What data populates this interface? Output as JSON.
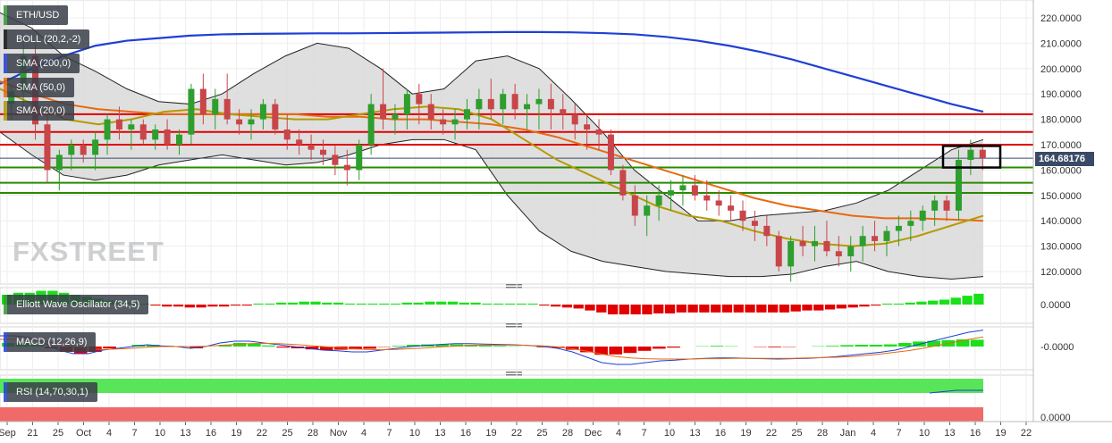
{
  "symbol": "ETH/USD",
  "indicators": {
    "boll": "BOLL (20,2,-2)",
    "sma200": "SMA (200,0)",
    "sma50": "SMA (50,0)",
    "sma20": "SMA (20,0)",
    "ewo": "Elliott Wave Oscillator (34,5)",
    "macd": "MACD (12,26,9)",
    "rsi": "RSI (14,70,30,1)"
  },
  "watermark": "FXSTREET",
  "current_price": "164.68176",
  "colors": {
    "up": "#2e9e2e",
    "down": "#c8454a",
    "sma200": "#1f3fd6",
    "sma50": "#e86a10",
    "sma20": "#b59a00",
    "resistance": "#e00000",
    "support": "#2a8a00",
    "boll_fill": "#d9d9d9",
    "label_bg": "#3a3f4a"
  },
  "chart_data": [
    {
      "type": "candlestick",
      "title": "ETH/USD",
      "y_axis": {
        "ticks": [
          "120.0000",
          "130.0000",
          "140.0000",
          "150.0000",
          "160.0000",
          "170.0000",
          "180.0000",
          "190.0000",
          "200.0000",
          "210.0000",
          "220.0000"
        ],
        "range": [
          115,
          225
        ]
      },
      "x_axis": {
        "ticks": [
          "Sep",
          "21",
          "25",
          "Oct",
          "4",
          "7",
          "10",
          "13",
          "16",
          "19",
          "22",
          "25",
          "28",
          "Nov",
          "4",
          "7",
          "10",
          "13",
          "16",
          "19",
          "22",
          "25",
          "28",
          "Dec",
          "4",
          "7",
          "10",
          "13",
          "16",
          "19",
          "22",
          "25",
          "28",
          "Jan",
          "4",
          "7",
          "10",
          "13",
          "16",
          "19",
          "22"
        ]
      },
      "candles": [
        [
          186,
          194,
          180,
          191
        ],
        [
          191,
          212,
          185,
          205
        ],
        [
          205,
          210,
          172,
          178
        ],
        [
          178,
          182,
          155,
          160
        ],
        [
          160,
          168,
          152,
          166
        ],
        [
          166,
          172,
          160,
          170
        ],
        [
          170,
          172,
          163,
          166
        ],
        [
          166,
          175,
          160,
          172
        ],
        [
          172,
          182,
          166,
          180
        ],
        [
          180,
          185,
          172,
          176
        ],
        [
          176,
          180,
          168,
          178
        ],
        [
          178,
          180,
          170,
          172
        ],
        [
          172,
          178,
          168,
          176
        ],
        [
          176,
          180,
          168,
          170
        ],
        [
          170,
          176,
          166,
          174
        ],
        [
          174,
          194,
          170,
          192
        ],
        [
          192,
          198,
          178,
          182
        ],
        [
          182,
          192,
          176,
          188
        ],
        [
          188,
          198,
          178,
          180
        ],
        [
          180,
          184,
          174,
          178
        ],
        [
          178,
          184,
          172,
          180
        ],
        [
          180,
          188,
          176,
          186
        ],
        [
          186,
          188,
          174,
          176
        ],
        [
          176,
          182,
          168,
          172
        ],
        [
          172,
          176,
          166,
          170
        ],
        [
          170,
          174,
          164,
          168
        ],
        [
          168,
          172,
          162,
          166
        ],
        [
          166,
          170,
          158,
          162
        ],
        [
          162,
          168,
          154,
          160
        ],
        [
          160,
          172,
          156,
          170
        ],
        [
          170,
          190,
          166,
          186
        ],
        [
          186,
          200,
          176,
          180
        ],
        [
          180,
          186,
          174,
          182
        ],
        [
          182,
          192,
          176,
          190
        ],
        [
          190,
          194,
          178,
          186
        ],
        [
          186,
          190,
          176,
          180
        ],
        [
          180,
          184,
          174,
          178
        ],
        [
          178,
          184,
          172,
          180
        ],
        [
          180,
          188,
          176,
          184
        ],
        [
          184,
          192,
          176,
          188
        ],
        [
          188,
          196,
          180,
          184
        ],
        [
          184,
          192,
          178,
          190
        ],
        [
          190,
          194,
          180,
          184
        ],
        [
          184,
          190,
          176,
          186
        ],
        [
          186,
          192,
          176,
          188
        ],
        [
          188,
          194,
          176,
          184
        ],
        [
          184,
          190,
          176,
          182
        ],
        [
          182,
          186,
          172,
          178
        ],
        [
          178,
          182,
          168,
          176
        ],
        [
          176,
          180,
          168,
          174
        ],
        [
          174,
          176,
          158,
          160
        ],
        [
          160,
          162,
          148,
          150
        ],
        [
          150,
          154,
          138,
          142
        ],
        [
          142,
          150,
          134,
          146
        ],
        [
          146,
          154,
          140,
          150
        ],
        [
          150,
          156,
          144,
          152
        ],
        [
          152,
          158,
          146,
          154
        ],
        [
          154,
          158,
          148,
          150
        ],
        [
          150,
          156,
          144,
          148
        ],
        [
          148,
          152,
          142,
          146
        ],
        [
          146,
          150,
          140,
          144
        ],
        [
          144,
          148,
          136,
          140
        ],
        [
          140,
          144,
          132,
          138
        ],
        [
          138,
          142,
          130,
          134
        ],
        [
          134,
          136,
          120,
          122
        ],
        [
          122,
          134,
          116,
          132
        ],
        [
          132,
          138,
          126,
          130
        ],
        [
          130,
          138,
          124,
          132
        ],
        [
          132,
          140,
          126,
          128
        ],
        [
          128,
          134,
          122,
          126
        ],
        [
          126,
          134,
          120,
          130
        ],
        [
          130,
          138,
          124,
          134
        ],
        [
          134,
          140,
          128,
          132
        ],
        [
          132,
          138,
          126,
          136
        ],
        [
          136,
          142,
          130,
          138
        ],
        [
          138,
          144,
          132,
          140
        ],
        [
          140,
          146,
          136,
          144
        ],
        [
          144,
          150,
          138,
          148
        ],
        [
          148,
          150,
          140,
          144
        ],
        [
          144,
          168,
          140,
          164
        ],
        [
          164,
          172,
          158,
          168
        ],
        [
          168,
          170,
          160,
          164.7
        ]
      ],
      "sma200": [
        194,
        200,
        205,
        209,
        211,
        212,
        213,
        213.5,
        213.7,
        213.8,
        213.9,
        213.9,
        214,
        214.1,
        214.2,
        214.3,
        214.4,
        214.4,
        214.3,
        214,
        213.5,
        212.5,
        211,
        209,
        206.5,
        203.5,
        200,
        196.5,
        193,
        189.5,
        186,
        183
      ],
      "sma50": [
        195,
        190,
        186,
        184,
        183,
        182,
        182,
        182,
        182,
        182,
        181,
        181,
        180,
        180,
        179,
        178,
        176,
        173,
        169,
        165,
        161,
        157,
        153,
        149,
        146,
        144,
        142,
        141,
        141,
        140.5,
        140
      ],
      "sma20": [
        192,
        186,
        180,
        178,
        180,
        183,
        184,
        182,
        181,
        180,
        180,
        182,
        184,
        185,
        184,
        180,
        172,
        164,
        158,
        152,
        146,
        142,
        140,
        136,
        133,
        131,
        130,
        131,
        134,
        138,
        142
      ],
      "boll_upper": [
        222,
        216,
        205,
        199,
        192,
        187,
        186,
        190,
        198,
        205,
        210,
        208,
        200,
        190,
        192,
        203,
        205,
        200,
        188,
        175,
        160,
        150,
        140,
        140,
        142,
        143,
        144,
        147,
        152,
        160,
        168,
        172
      ],
      "boll_lower": [
        175,
        166,
        158,
        156,
        158,
        162,
        164,
        166,
        164,
        162,
        163,
        166,
        170,
        172,
        172,
        168,
        150,
        136,
        128,
        124,
        122,
        120,
        119,
        118,
        118,
        119,
        122,
        124,
        120,
        118,
        117,
        118
      ],
      "resistance_levels": [
        182,
        175,
        170
      ],
      "support_levels": [
        161,
        155,
        151
      ],
      "current_price": 164.68176
    },
    {
      "type": "bar",
      "title": "Elliott Wave Oscillator (34,5)",
      "y_axis": {
        "ticks": [
          "0.0000"
        ]
      },
      "values": [
        5,
        6,
        6,
        7,
        7,
        6,
        5,
        4,
        3,
        2,
        1,
        1,
        0.5,
        -0.5,
        -1,
        -1,
        -1.5,
        -1.5,
        -1,
        -1,
        -0.5,
        -0.5,
        0.5,
        0.5,
        1,
        1,
        1.5,
        1.5,
        1,
        1,
        0.5,
        0.5,
        0.5,
        0.5,
        0.5,
        1,
        1,
        1.5,
        1.5,
        1.5,
        1,
        1,
        0.5,
        0.5,
        0.5,
        0.5,
        0.5,
        -0.5,
        -1,
        -1.5,
        -2,
        -3,
        -4,
        -5,
        -5,
        -5,
        -5,
        -4.5,
        -4.5,
        -4,
        -4,
        -4,
        -4,
        -4,
        -4,
        -4,
        -4,
        -4,
        -4,
        -3.5,
        -3,
        -3,
        -2.5,
        -2,
        -1.5,
        -1,
        -0.5,
        0.5,
        0.5,
        1,
        1.5,
        2,
        2.5,
        3.5,
        4.5,
        5.5
      ]
    },
    {
      "type": "line",
      "title": "MACD (12,26,9)",
      "y_axis": {
        "ticks": [
          "-0.0000"
        ]
      },
      "macd": [
        3,
        3,
        2.5,
        1,
        -1,
        -2,
        -2,
        -1,
        -0.5,
        0,
        0.5,
        0.2,
        0,
        -0.5,
        0,
        1,
        1.5,
        1.5,
        1,
        0.5,
        0,
        -0.5,
        -1,
        -1.2,
        -1.5,
        -1.5,
        -1,
        -0.5,
        0,
        0.3,
        0.6,
        0.8,
        0.8,
        0.7,
        0.6,
        0.5,
        0.3,
        0,
        -0.5,
        -1.5,
        -3,
        -4.5,
        -5,
        -5,
        -4.5,
        -4,
        -3.8,
        -3.5,
        -3.3,
        -3.2,
        -3.2,
        -3.3,
        -3.4,
        -3.5,
        -3.4,
        -3.3,
        -3.1,
        -2.8,
        -2.4,
        -2,
        -1.6,
        -1,
        0,
        1,
        2,
        3,
        4,
        4.6
      ],
      "signal": [
        2,
        2,
        2,
        1.5,
        0.8,
        0,
        -0.6,
        -0.8,
        -0.7,
        -0.5,
        -0.2,
        0,
        0,
        0,
        0.1,
        0.3,
        0.6,
        0.8,
        0.9,
        0.8,
        0.6,
        0.3,
        0,
        -0.3,
        -0.6,
        -0.8,
        -0.9,
        -0.8,
        -0.6,
        -0.4,
        -0.1,
        0.1,
        0.3,
        0.4,
        0.4,
        0.4,
        0.3,
        0.2,
        -0.1,
        -0.6,
        -1.3,
        -2.1,
        -2.8,
        -3.2,
        -3.4,
        -3.5,
        -3.5,
        -3.5,
        -3.4,
        -3.4,
        -3.3,
        -3.3,
        -3.3,
        -3.3,
        -3.3,
        -3.2,
        -3.1,
        -3,
        -2.8,
        -2.5,
        -2.1,
        -1.6,
        -1.1,
        -0.4,
        0.4,
        1.2,
        2,
        2.7
      ],
      "histogram": [
        1,
        1,
        0.5,
        -0.5,
        -1.5,
        -2,
        -1.5,
        -0.5,
        0,
        0.5,
        0.5,
        0.2,
        0,
        -0.5,
        0,
        0.5,
        1,
        0.8,
        0.3,
        -0.3,
        -0.5,
        -0.8,
        -1,
        -0.9,
        -0.8,
        -0.6,
        -0.1,
        0.2,
        0.5,
        0.6,
        0.6,
        0.6,
        0.5,
        0.3,
        0.2,
        0.1,
        0,
        -0.2,
        -0.4,
        -0.9,
        -1.6,
        -2.3,
        -2.2,
        -1.8,
        -1.2,
        -0.6,
        -0.3,
        0,
        0.1,
        0.2,
        0.1,
        0,
        -0.1,
        -0.2,
        -0.1,
        0,
        0.1,
        0.2,
        0.4,
        0.5,
        0.5,
        0.6,
        1,
        1.4,
        1.6,
        1.8,
        2,
        1.9
      ]
    },
    {
      "type": "area",
      "title": "RSI (14,70,30,1)",
      "y_axis": {
        "ticks": [
          "0.0000"
        ]
      }
    }
  ]
}
